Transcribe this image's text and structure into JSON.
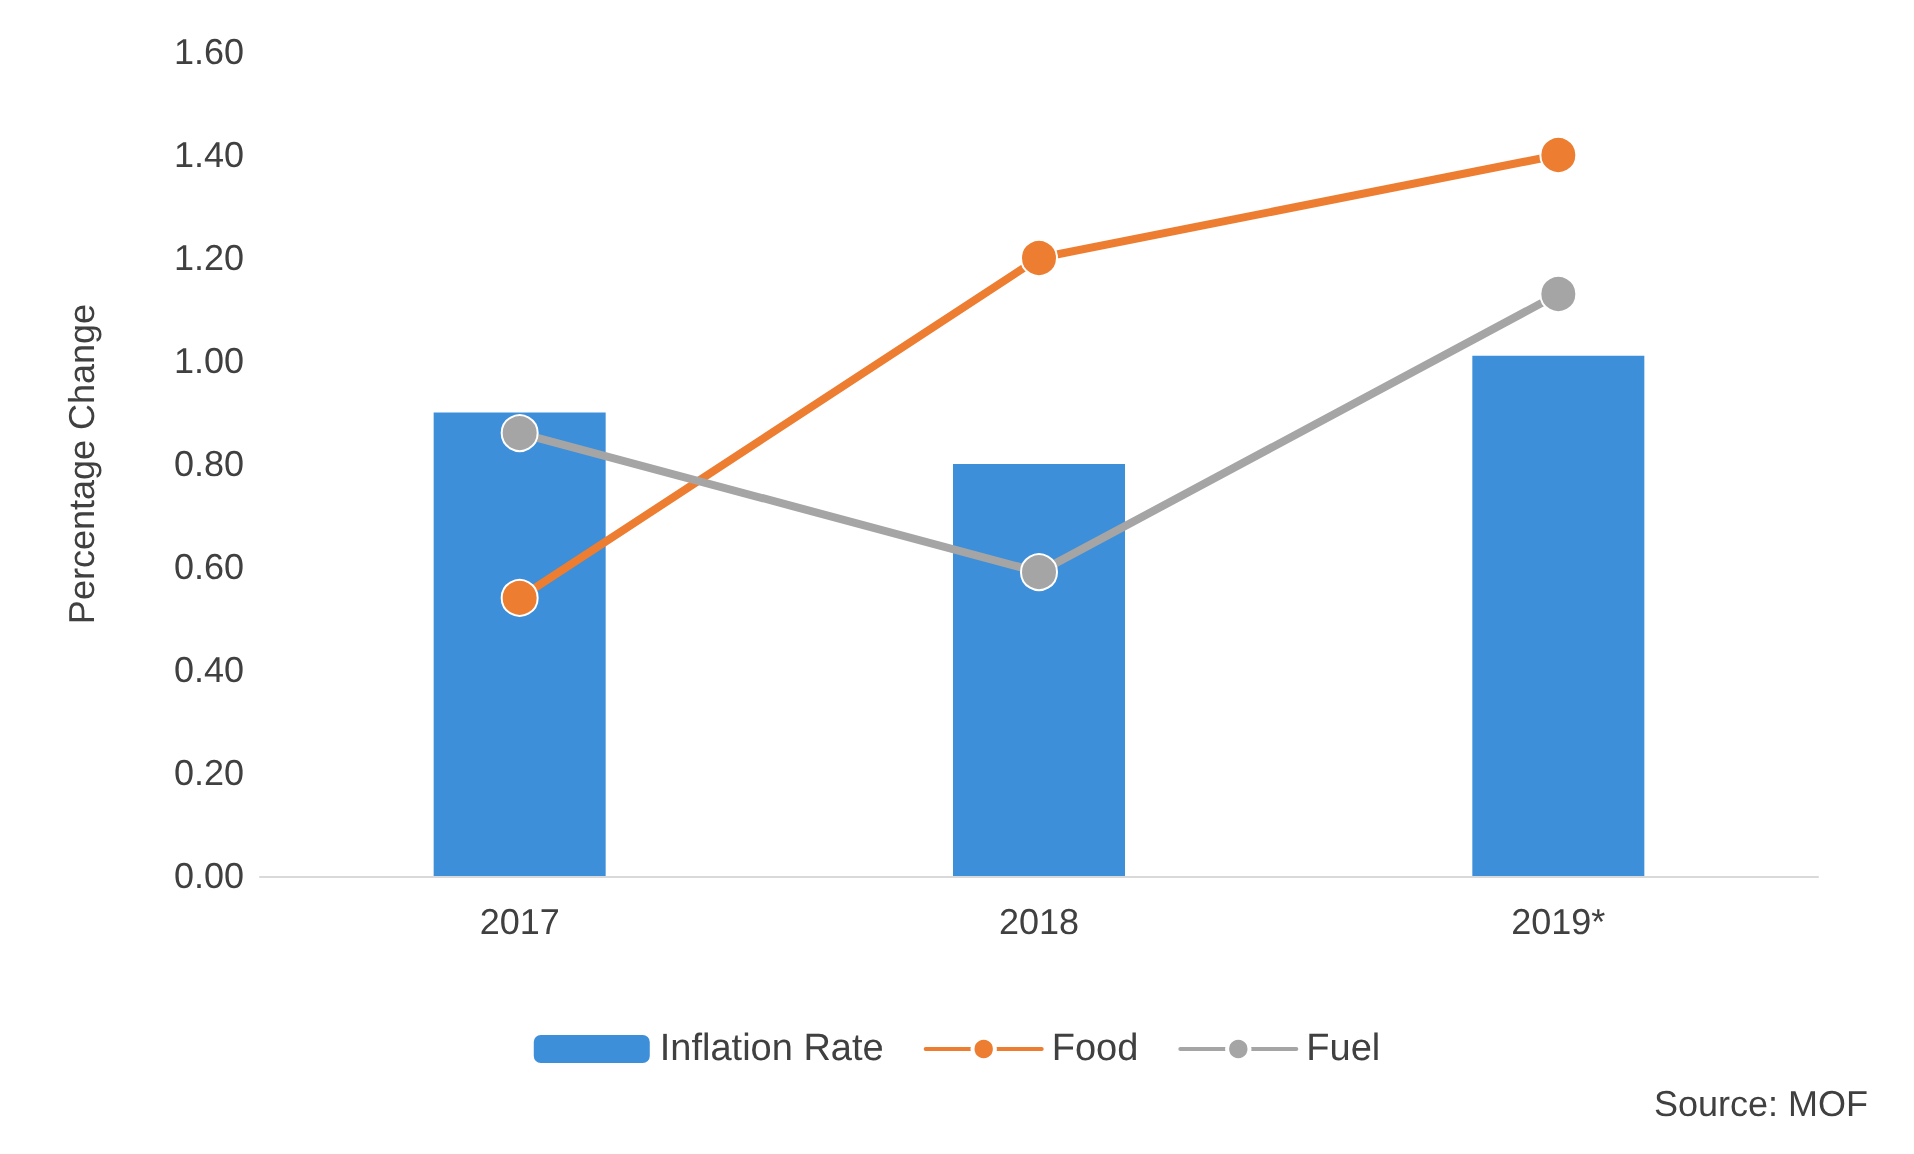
{
  "chart_data": {
    "type": "bar",
    "ylabel": "Percentage Change",
    "categories": [
      "2017",
      "2018",
      "2019*"
    ],
    "series": [
      {
        "name": "Inflation Rate",
        "color": "#3d8fd9",
        "values": [
          0.9,
          0.8,
          1.01
        ]
      },
      {
        "name": "Food",
        "type": "line",
        "color": "#ed7d31",
        "values": [
          0.54,
          1.2,
          1.4
        ]
      },
      {
        "name": "Fuel",
        "type": "line",
        "color": "#a5a5a5",
        "values": [
          0.86,
          0.59,
          1.13
        ]
      }
    ],
    "ylim": [
      0,
      1.6
    ],
    "yticks": [
      {
        "value": 0,
        "label": "0.00"
      },
      {
        "value": 0.2,
        "label": "0.20"
      },
      {
        "value": 0.4,
        "label": "0.40"
      },
      {
        "value": 0.6,
        "label": "0.60"
      },
      {
        "value": 0.8,
        "label": "0.80"
      },
      {
        "value": 1.0,
        "label": "1.00"
      },
      {
        "value": 1.2,
        "label": "1.20"
      },
      {
        "value": 1.4,
        "label": "1.40"
      },
      {
        "value": 1.6,
        "label": "1.60"
      }
    ],
    "grid": false,
    "legend": "bottom",
    "marker": "circle",
    "line_style": "solid",
    "annotations": [
      "Source: MOF"
    ]
  }
}
